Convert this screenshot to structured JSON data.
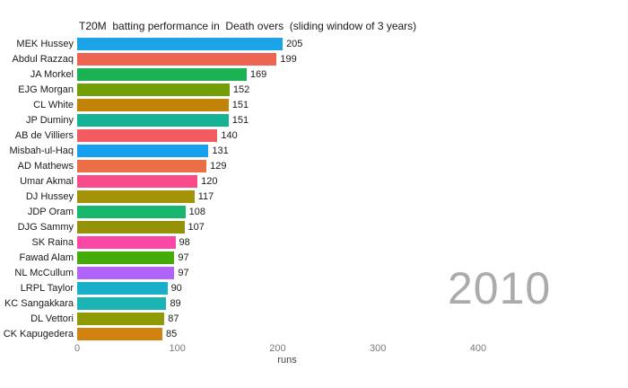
{
  "chart_data": {
    "type": "bar",
    "orientation": "horizontal",
    "title": "T20M  batting performance in  Death overs  (sliding window of 3 years)",
    "xlabel": "runs",
    "year_label": "2010",
    "xlim": [
      0,
      460
    ],
    "xticks": [
      0,
      100,
      200,
      300,
      400
    ],
    "grid": false,
    "value_labels_shown": true,
    "categories": [
      "MEK Hussey",
      "Abdul Razzaq",
      "JA Morkel",
      "EJG Morgan",
      "CL White",
      "JP Duminy",
      "AB de Villiers",
      "Misbah-ul-Haq",
      "AD Mathews",
      "Umar Akmal",
      "DJ Hussey",
      "JDP Oram",
      "DJG Sammy",
      "SK Raina",
      "Fawad Alam",
      "NL McCullum",
      "LRPL Taylor",
      "KC Sangakkara",
      "DL Vettori",
      "CK Kapugedera"
    ],
    "values": [
      205,
      199,
      169,
      152,
      151,
      151,
      140,
      131,
      129,
      120,
      117,
      108,
      107,
      98,
      97,
      97,
      90,
      89,
      87,
      85
    ],
    "colors": [
      "#1BA3E8",
      "#EE6352",
      "#1BB254",
      "#739E06",
      "#C18409",
      "#16B295",
      "#F25B60",
      "#18A0F0",
      "#EB6E46",
      "#F94A8C",
      "#A29208",
      "#17B86E",
      "#939208",
      "#FA46A5",
      "#45AB08",
      "#B163FA",
      "#17AFC9",
      "#1BB4B4",
      "#8F9A07",
      "#D18210"
    ],
    "text_colors": {
      "title": "#1a1a1a",
      "tick": "#7a7a7a",
      "axis_label": "#424242",
      "watermark": "#ababab"
    }
  }
}
